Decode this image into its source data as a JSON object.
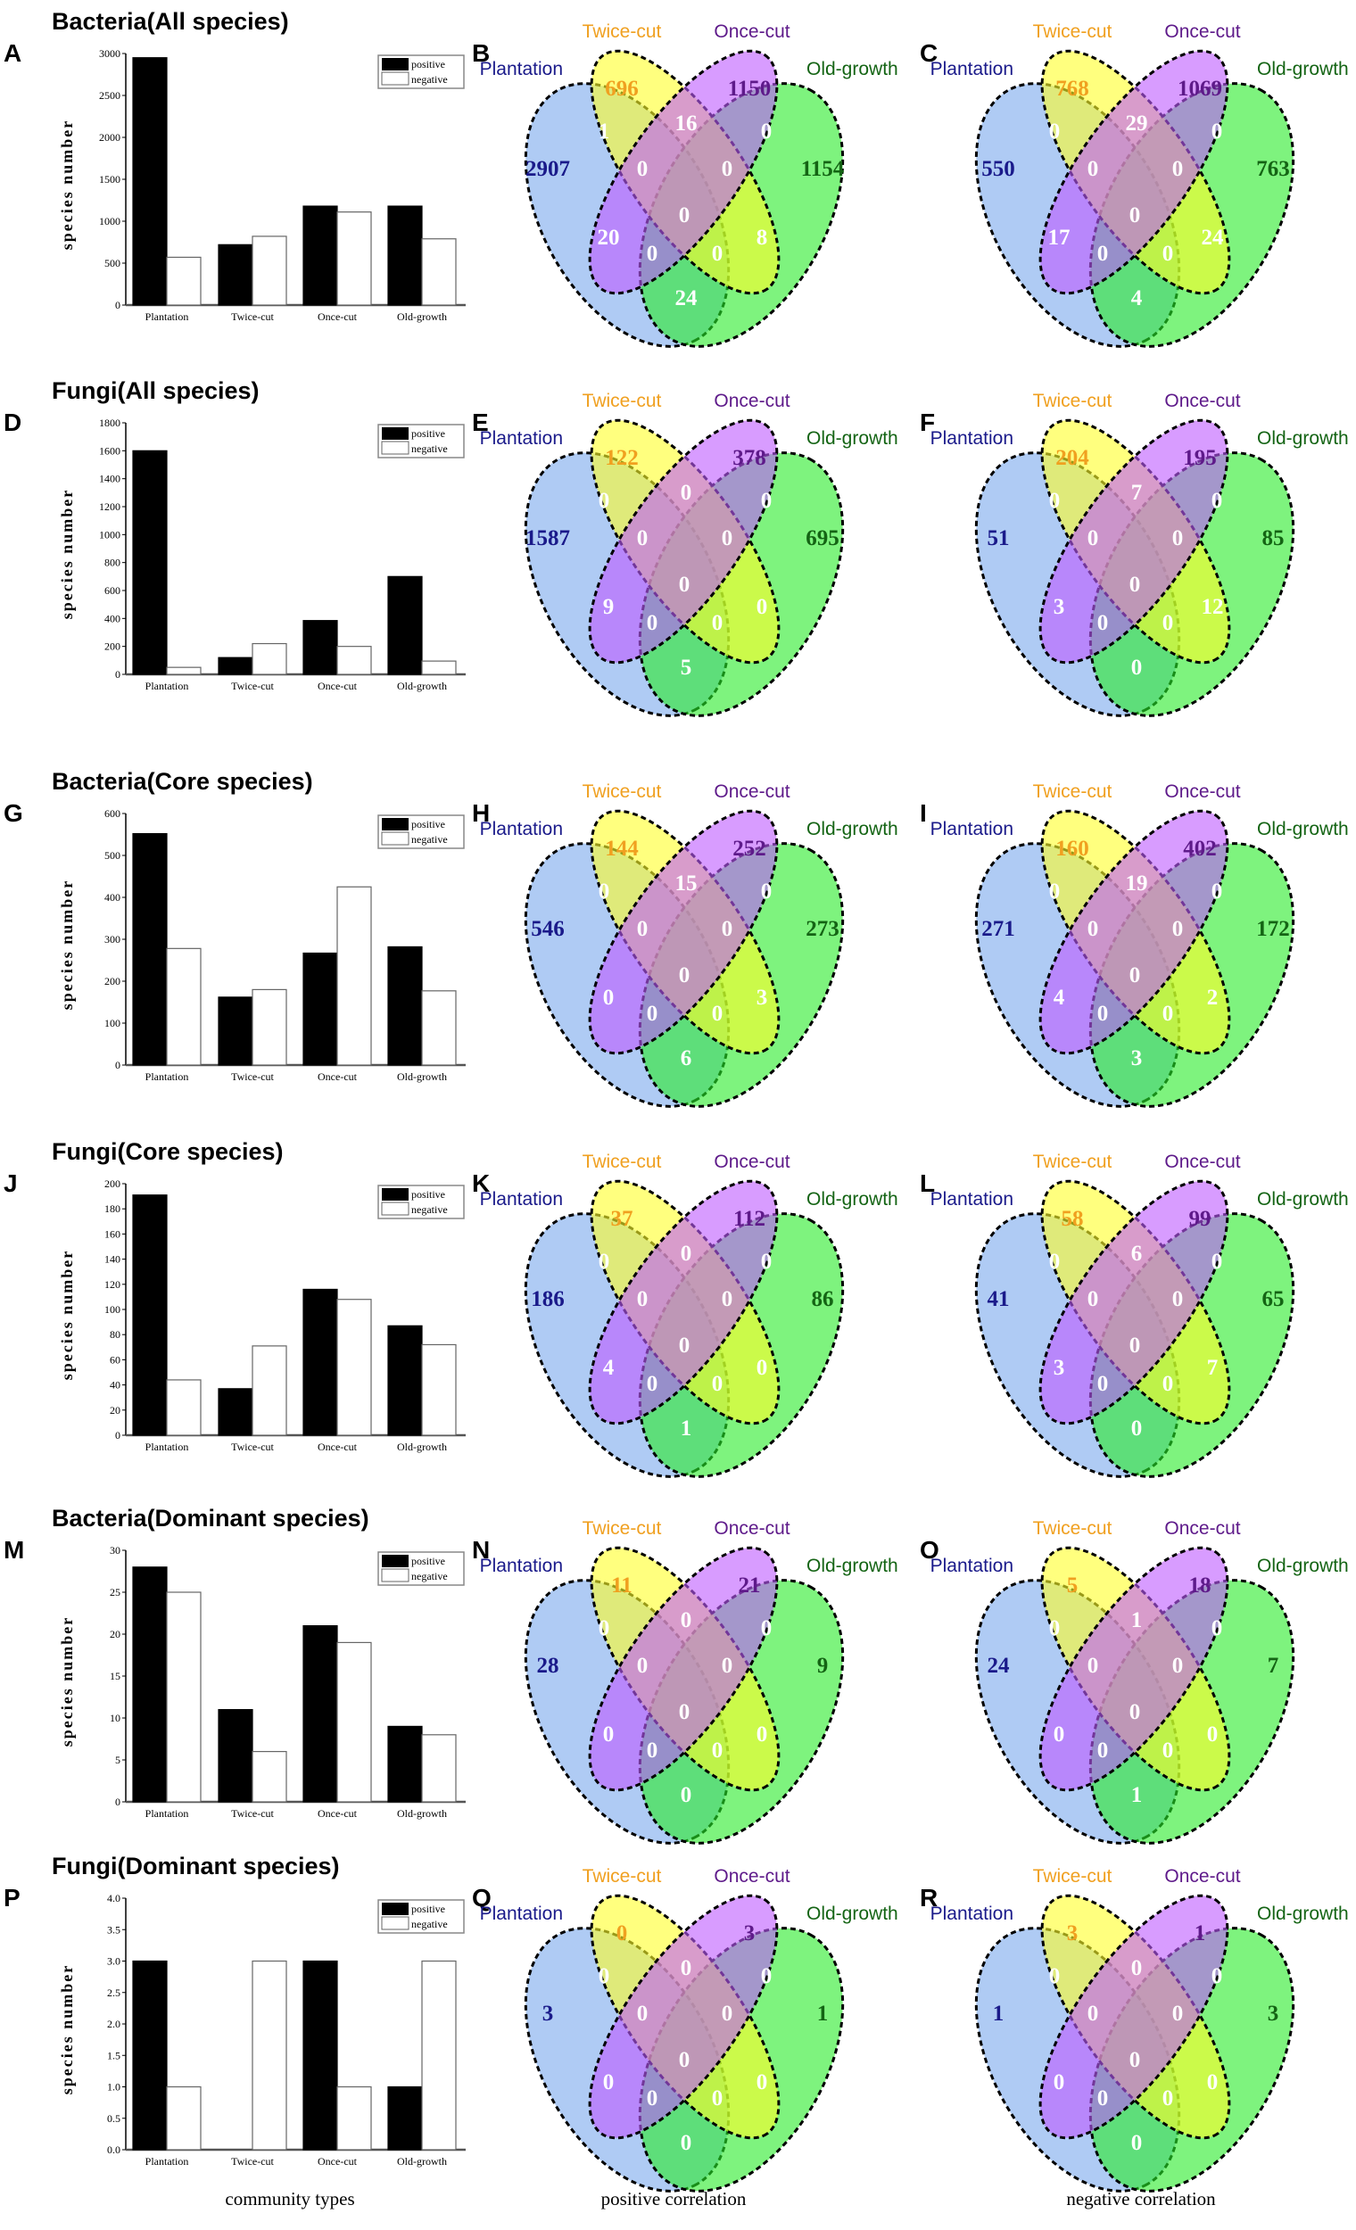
{
  "categories": [
    "Plantation",
    "Twice-cut",
    "Once-cut",
    "Old-growth"
  ],
  "legend": {
    "positive": "positive",
    "negative": "negative"
  },
  "y_label": "species number",
  "venn_sets": {
    "plantation": "Plantation",
    "twice": "Twice-cut",
    "once": "Once-cut",
    "old": "Old-growth"
  },
  "colors": {
    "plantation": "#1a1a8a",
    "twice": "#f0a020",
    "once": "#5e1a8a",
    "old": "#146414",
    "positive": "#000000",
    "negative": "#ffffff"
  },
  "footer": {
    "x_label": "community types",
    "positive_label": "positive correlation",
    "negative_label": "negative correlation"
  },
  "region_order": [
    "T",
    "O",
    "P",
    "G",
    "PT",
    "TO",
    "OG",
    "PTO",
    "TOG",
    "PTOG",
    "PO",
    "TG",
    "POG",
    "PTG",
    "PG"
  ],
  "chart_data": [
    {
      "type": "bar",
      "title": "Bacteria(All species)",
      "letter": "A",
      "ylim": [
        0,
        3000
      ],
      "ticks": [
        "0",
        "500",
        "1000",
        "1500",
        "2000",
        "2500",
        "3000"
      ],
      "series": [
        {
          "name": "positive",
          "values": [
            2950,
            720,
            1180,
            1180
          ]
        },
        {
          "name": "negative",
          "values": [
            570,
            820,
            1110,
            790
          ]
        }
      ],
      "venns": [
        {
          "letter": "B",
          "correlation": "positive",
          "regions": [
            "696",
            "1150",
            "2907",
            "1154",
            "1",
            "16",
            "0",
            "0",
            "0",
            "0",
            "20",
            "8",
            "0",
            "0",
            "24"
          ]
        },
        {
          "letter": "C",
          "correlation": "negative",
          "regions": [
            "768",
            "1069",
            "550",
            "763",
            "0",
            "29",
            "0",
            "0",
            "0",
            "0",
            "17",
            "24",
            "0",
            "0",
            "4"
          ]
        }
      ]
    },
    {
      "type": "bar",
      "title": "Fungi(All species)",
      "letter": "D",
      "ylim": [
        0,
        1800
      ],
      "ticks": [
        "0",
        "200",
        "400",
        "600",
        "800",
        "1000",
        "1200",
        "1400",
        "1600",
        "1800"
      ],
      "series": [
        {
          "name": "positive",
          "values": [
            1600,
            120,
            385,
            700
          ]
        },
        {
          "name": "negative",
          "values": [
            50,
            220,
            200,
            95
          ]
        }
      ],
      "venns": [
        {
          "letter": "E",
          "correlation": "positive",
          "regions": [
            "122",
            "378",
            "1587",
            "695",
            "0",
            "0",
            "0",
            "0",
            "0",
            "0",
            "9",
            "0",
            "0",
            "0",
            "5"
          ]
        },
        {
          "letter": "F",
          "correlation": "negative",
          "regions": [
            "204",
            "195",
            "51",
            "85",
            "0",
            "7",
            "0",
            "0",
            "0",
            "0",
            "3",
            "12",
            "0",
            "0",
            "0"
          ]
        }
      ]
    },
    {
      "type": "bar",
      "title": "Bacteria(Core species)",
      "letter": "G",
      "ylim": [
        0,
        600
      ],
      "ticks": [
        "0",
        "100",
        "200",
        "300",
        "400",
        "500",
        "600"
      ],
      "series": [
        {
          "name": "positive",
          "values": [
            552,
            162,
            267,
            282
          ]
        },
        {
          "name": "negative",
          "values": [
            278,
            180,
            425,
            177
          ]
        }
      ],
      "venns": [
        {
          "letter": "H",
          "correlation": "positive",
          "regions": [
            "144",
            "252",
            "546",
            "273",
            "0",
            "15",
            "0",
            "0",
            "0",
            "0",
            "0",
            "3",
            "0",
            "0",
            "6"
          ]
        },
        {
          "letter": "I",
          "correlation": "negative",
          "regions": [
            "160",
            "402",
            "271",
            "172",
            "0",
            "19",
            "0",
            "0",
            "0",
            "0",
            "4",
            "2",
            "0",
            "0",
            "3"
          ]
        }
      ]
    },
    {
      "type": "bar",
      "title": "Fungi(Core species)",
      "letter": "J",
      "ylim": [
        0,
        200
      ],
      "ticks": [
        "0",
        "20",
        "40",
        "60",
        "80",
        "100",
        "120",
        "140",
        "160",
        "180",
        "200"
      ],
      "series": [
        {
          "name": "positive",
          "values": [
            191,
            37,
            116,
            87
          ]
        },
        {
          "name": "negative",
          "values": [
            44,
            71,
            108,
            72
          ]
        }
      ],
      "venns": [
        {
          "letter": "K",
          "correlation": "positive",
          "regions": [
            "37",
            "112",
            "186",
            "86",
            "0",
            "0",
            "0",
            "0",
            "0",
            "0",
            "4",
            "0",
            "0",
            "0",
            "1"
          ]
        },
        {
          "letter": "L",
          "correlation": "negative",
          "regions": [
            "58",
            "99",
            "41",
            "65",
            "0",
            "6",
            "0",
            "0",
            "0",
            "0",
            "3",
            "7",
            "0",
            "0",
            "0"
          ]
        }
      ]
    },
    {
      "type": "bar",
      "title": "Bacteria(Dominant species)",
      "letter": "M",
      "ylim": [
        0,
        30
      ],
      "ticks": [
        "0",
        "5",
        "10",
        "15",
        "20",
        "25",
        "30"
      ],
      "series": [
        {
          "name": "positive",
          "values": [
            28,
            11,
            21,
            9
          ]
        },
        {
          "name": "negative",
          "values": [
            25,
            6,
            19,
            8
          ]
        }
      ],
      "venns": [
        {
          "letter": "N",
          "correlation": "positive",
          "regions": [
            "11",
            "21",
            "28",
            "9",
            "0",
            "0",
            "0",
            "0",
            "0",
            "0",
            "0",
            "0",
            "0",
            "0",
            "0"
          ]
        },
        {
          "letter": "O",
          "correlation": "negative",
          "regions": [
            "5",
            "18",
            "24",
            "7",
            "0",
            "1",
            "0",
            "0",
            "0",
            "0",
            "0",
            "0",
            "0",
            "0",
            "1"
          ]
        }
      ]
    },
    {
      "type": "bar",
      "title": "Fungi(Dominant species)",
      "letter": "P",
      "ylim": [
        0,
        4
      ],
      "ticks": [
        "0.0",
        "0.5",
        "1.0",
        "1.5",
        "2.0",
        "2.5",
        "3.0",
        "3.5",
        "4.0"
      ],
      "series": [
        {
          "name": "positive",
          "values": [
            3,
            0,
            3,
            1
          ]
        },
        {
          "name": "negative",
          "values": [
            1,
            3,
            1,
            3
          ]
        }
      ],
      "venns": [
        {
          "letter": "Q",
          "correlation": "positive",
          "regions": [
            "0",
            "3",
            "3",
            "1",
            "0",
            "0",
            "0",
            "0",
            "0",
            "0",
            "0",
            "0",
            "0",
            "0",
            "0"
          ]
        },
        {
          "letter": "R",
          "correlation": "negative",
          "regions": [
            "3",
            "1",
            "1",
            "3",
            "0",
            "0",
            "0",
            "0",
            "0",
            "0",
            "0",
            "0",
            "0",
            "0",
            "0"
          ]
        }
      ]
    }
  ]
}
